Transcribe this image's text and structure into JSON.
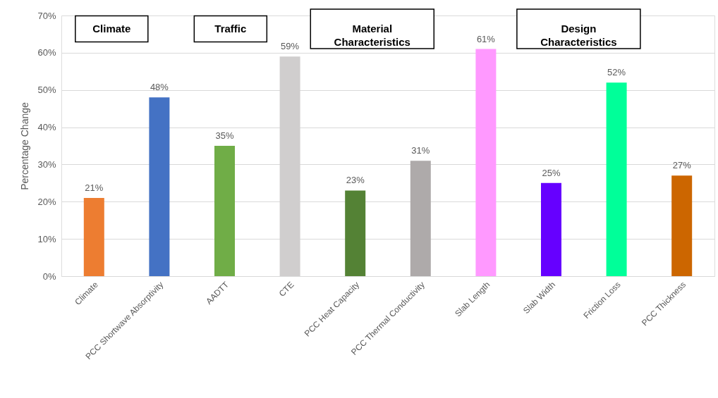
{
  "chart_data": {
    "type": "bar",
    "ylabel": "Percentage Change",
    "categories": [
      "Climate",
      "PCC Shortwave Absorptivity",
      "AADTT",
      "CTE",
      "PCC Heat Capacity",
      "PCC Thermal Conductivity",
      "Slab Length",
      "Slab Width",
      "Friction Loss",
      "PCC Thickness"
    ],
    "values": [
      21,
      48,
      35,
      59,
      23,
      31,
      61,
      25,
      52,
      27
    ],
    "colors": [
      "#ed7d31",
      "#4472c4",
      "#70ad47",
      "#d0cece",
      "#548235",
      "#aeaaaa",
      "#ff99ff",
      "#6600ff",
      "#00ff99",
      "#cc6600"
    ],
    "value_labels": [
      "21%",
      "48%",
      "35%",
      "59%",
      "23%",
      "31%",
      "61%",
      "25%",
      "52%",
      "27%"
    ],
    "ylim": [
      0,
      70
    ],
    "yticks": [
      {
        "value": 0,
        "label": "0%"
      },
      {
        "value": 10,
        "label": "10%"
      },
      {
        "value": 20,
        "label": "20%"
      },
      {
        "value": 30,
        "label": "30%"
      },
      {
        "value": 40,
        "label": "40%"
      },
      {
        "value": 50,
        "label": "50%"
      },
      {
        "value": 60,
        "label": "60%"
      },
      {
        "value": 70,
        "label": "70%"
      }
    ],
    "grid": "y",
    "annotations": [
      "Climate",
      "Traffic",
      "Material Characteristics",
      "Design Characteristics"
    ]
  }
}
